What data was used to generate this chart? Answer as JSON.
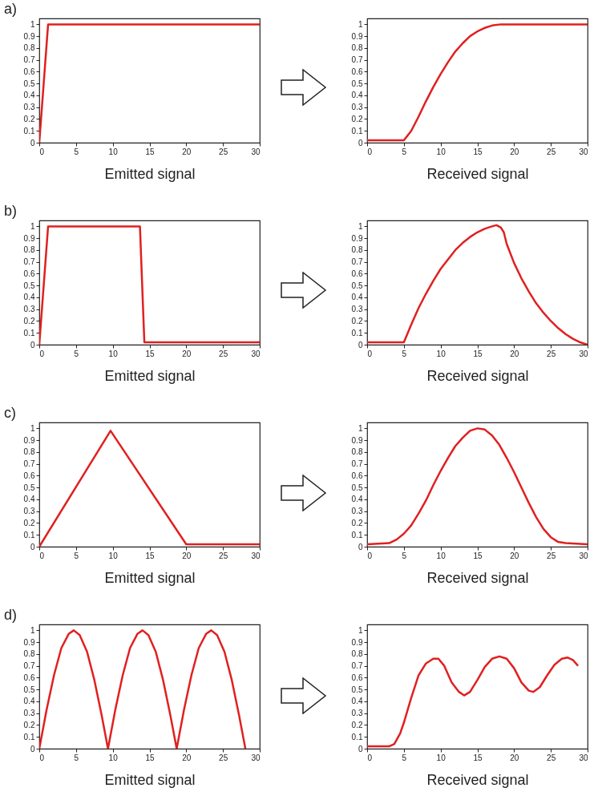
{
  "chart_data": [
    {
      "type": "line",
      "annotations": [
        "a)"
      ],
      "xlabel": "Emitted signal",
      "x": [
        0,
        1.2,
        30
      ],
      "values": [
        0,
        1,
        1
      ],
      "color": "#e02020",
      "xlim": [
        0,
        30
      ],
      "xticks": [
        0,
        5,
        10,
        15,
        20,
        25,
        30
      ],
      "ylim": [
        0,
        1.05
      ],
      "yticks": [
        0,
        0.1,
        0.2,
        0.3,
        0.4,
        0.5,
        0.6,
        0.7,
        0.8,
        0.9,
        1
      ],
      "grid": false
    },
    {
      "type": "line",
      "xlabel": "Received signal",
      "x": [
        0,
        5,
        6,
        7,
        8,
        9,
        10,
        11,
        12,
        13,
        14,
        15,
        16,
        17,
        18.2,
        30
      ],
      "values": [
        0.02,
        0.02,
        0.1,
        0.22,
        0.35,
        0.47,
        0.58,
        0.68,
        0.77,
        0.84,
        0.9,
        0.94,
        0.97,
        0.99,
        1,
        1
      ],
      "color": "#e02020",
      "xlim": [
        0,
        30
      ],
      "xticks": [
        0,
        5,
        10,
        15,
        20,
        25,
        30
      ],
      "ylim": [
        0,
        1.05
      ],
      "yticks": [
        0,
        0.1,
        0.2,
        0.3,
        0.4,
        0.5,
        0.6,
        0.7,
        0.8,
        0.9,
        1
      ],
      "grid": false
    },
    {
      "type": "line",
      "annotations": [
        "b)"
      ],
      "xlabel": "Emitted signal",
      "x": [
        0,
        1.2,
        13.7,
        14.3,
        30
      ],
      "values": [
        0,
        1,
        1,
        0.02,
        0.02
      ],
      "color": "#e02020",
      "xlim": [
        0,
        30
      ],
      "xticks": [
        0,
        5,
        10,
        15,
        20,
        25,
        30
      ],
      "ylim": [
        0,
        1.05
      ],
      "yticks": [
        0,
        0.1,
        0.2,
        0.3,
        0.4,
        0.5,
        0.6,
        0.7,
        0.8,
        0.9,
        1
      ],
      "grid": false
    },
    {
      "type": "line",
      "xlabel": "Received signal",
      "x": [
        0,
        5,
        6,
        7,
        8,
        9,
        10,
        11,
        12,
        13,
        14,
        15,
        16,
        17,
        17.6,
        18.2,
        18.6,
        19,
        20,
        21,
        22,
        23,
        24,
        25,
        26,
        27,
        28,
        29,
        30
      ],
      "values": [
        0.02,
        0.02,
        0.17,
        0.31,
        0.43,
        0.54,
        0.64,
        0.72,
        0.8,
        0.86,
        0.91,
        0.95,
        0.98,
        1.0,
        1.01,
        0.99,
        0.95,
        0.85,
        0.69,
        0.56,
        0.45,
        0.35,
        0.27,
        0.2,
        0.14,
        0.09,
        0.05,
        0.02,
        0
      ],
      "color": "#e02020",
      "xlim": [
        0,
        30
      ],
      "xticks": [
        0,
        5,
        10,
        15,
        20,
        25,
        30
      ],
      "ylim": [
        0,
        1.05
      ],
      "yticks": [
        0,
        0.1,
        0.2,
        0.3,
        0.4,
        0.5,
        0.6,
        0.7,
        0.8,
        0.9,
        1
      ],
      "grid": false
    },
    {
      "type": "line",
      "annotations": [
        "c)"
      ],
      "xlabel": "Emitted signal",
      "x": [
        0,
        9.7,
        20,
        30
      ],
      "values": [
        0,
        0.98,
        0.02,
        0.02
      ],
      "color": "#e02020",
      "xlim": [
        0,
        30
      ],
      "xticks": [
        0,
        5,
        10,
        15,
        20,
        25,
        30
      ],
      "ylim": [
        0,
        1.05
      ],
      "yticks": [
        0,
        0.1,
        0.2,
        0.3,
        0.4,
        0.5,
        0.6,
        0.7,
        0.8,
        0.9,
        1
      ],
      "grid": false
    },
    {
      "type": "line",
      "xlabel": "Received signal",
      "x": [
        0,
        3,
        4,
        5,
        6,
        7,
        8,
        9,
        10,
        11,
        12,
        13,
        14,
        15,
        16,
        17,
        18,
        19,
        20,
        21,
        22,
        23,
        24,
        25,
        26,
        27,
        30
      ],
      "values": [
        0.02,
        0.03,
        0.06,
        0.11,
        0.18,
        0.28,
        0.39,
        0.52,
        0.64,
        0.75,
        0.85,
        0.92,
        0.98,
        1.0,
        0.99,
        0.94,
        0.86,
        0.75,
        0.63,
        0.5,
        0.37,
        0.25,
        0.15,
        0.08,
        0.04,
        0.03,
        0.02
      ],
      "color": "#e02020",
      "xlim": [
        0,
        30
      ],
      "xticks": [
        0,
        5,
        10,
        15,
        20,
        25,
        30
      ],
      "ylim": [
        0,
        1.05
      ],
      "yticks": [
        0,
        0.1,
        0.2,
        0.3,
        0.4,
        0.5,
        0.6,
        0.7,
        0.8,
        0.9,
        1
      ],
      "grid": false
    },
    {
      "type": "line",
      "annotations": [
        "d)"
      ],
      "xlabel": "Emitted signal",
      "x": [
        0,
        1,
        2,
        3,
        4,
        4.7,
        5.5,
        6.5,
        7.5,
        8.5,
        9.35,
        10.35,
        11.35,
        12.35,
        13.35,
        14.05,
        14.85,
        15.85,
        16.85,
        17.85,
        18.7,
        19.7,
        20.7,
        21.7,
        22.7,
        23.4,
        24.2,
        25.2,
        26.2,
        27.2,
        28.05
      ],
      "values": [
        0,
        0.33,
        0.62,
        0.85,
        0.97,
        1,
        0.96,
        0.82,
        0.58,
        0.28,
        0,
        0.33,
        0.62,
        0.85,
        0.97,
        1,
        0.96,
        0.82,
        0.58,
        0.28,
        0,
        0.33,
        0.62,
        0.85,
        0.97,
        1,
        0.96,
        0.82,
        0.58,
        0.28,
        0
      ],
      "color": "#e02020",
      "xlim": [
        0,
        30
      ],
      "xticks": [
        0,
        5,
        10,
        15,
        20,
        25,
        30
      ],
      "ylim": [
        0,
        1.05
      ],
      "yticks": [
        0,
        0.1,
        0.2,
        0.3,
        0.4,
        0.5,
        0.6,
        0.7,
        0.8,
        0.9,
        1
      ],
      "grid": false
    },
    {
      "type": "line",
      "xlabel": "Received signal",
      "x": [
        0,
        3,
        3.7,
        4.5,
        5,
        6,
        7,
        8,
        9,
        9.7,
        10.5,
        11.5,
        12.5,
        13.2,
        14,
        15,
        16,
        17,
        18,
        19,
        20,
        21,
        22,
        22.6,
        23.5,
        24.5,
        25.5,
        26.5,
        27.3,
        28,
        28.7
      ],
      "values": [
        0.02,
        0.02,
        0.04,
        0.13,
        0.22,
        0.43,
        0.62,
        0.72,
        0.76,
        0.76,
        0.7,
        0.56,
        0.48,
        0.45,
        0.48,
        0.58,
        0.69,
        0.76,
        0.78,
        0.76,
        0.68,
        0.56,
        0.49,
        0.48,
        0.52,
        0.62,
        0.71,
        0.76,
        0.77,
        0.75,
        0.7
      ],
      "color": "#e02020",
      "xlim": [
        0,
        30
      ],
      "xticks": [
        0,
        5,
        10,
        15,
        20,
        25,
        30
      ],
      "ylim": [
        0,
        1.05
      ],
      "yticks": [
        0,
        0.1,
        0.2,
        0.3,
        0.4,
        0.5,
        0.6,
        0.7,
        0.8,
        0.9,
        1
      ],
      "grid": false
    }
  ]
}
